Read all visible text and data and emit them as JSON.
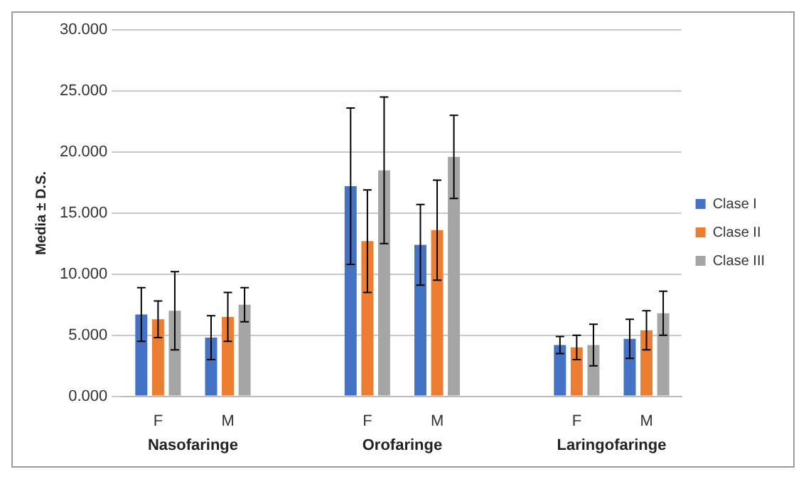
{
  "chart_data": {
    "type": "bar",
    "ylabel": "Media ± D.S.",
    "categories": [
      "F",
      "M",
      null,
      "F",
      "M",
      null,
      "F",
      "M"
    ],
    "series": [
      {
        "name": "Clase I",
        "color": "#4472c4",
        "values": [
          6.7,
          4.8,
          null,
          17.2,
          12.4,
          null,
          4.2,
          4.7
        ],
        "errors": [
          2.2,
          1.8,
          null,
          6.4,
          3.3,
          null,
          0.7,
          1.6
        ]
      },
      {
        "name": "Clase II",
        "color": "#ed7d31",
        "values": [
          6.3,
          6.5,
          null,
          12.7,
          13.6,
          null,
          4.0,
          5.4
        ],
        "errors": [
          1.5,
          2.0,
          null,
          4.2,
          4.1,
          null,
          1.0,
          1.6
        ]
      },
      {
        "name": "Clase III",
        "color": "#a5a5a5",
        "values": [
          7.0,
          7.5,
          null,
          18.5,
          19.6,
          null,
          4.2,
          6.8
        ],
        "errors": [
          3.2,
          1.4,
          null,
          6.0,
          3.4,
          null,
          1.7,
          1.8
        ]
      }
    ],
    "ylim": [
      0,
      30
    ],
    "yticks": [
      {
        "value": 0,
        "label": "0.000"
      },
      {
        "value": 5,
        "label": "5.000"
      },
      {
        "value": 10,
        "label": "10.000"
      },
      {
        "value": 15,
        "label": "15.000"
      },
      {
        "value": 20,
        "label": "20.000"
      },
      {
        "value": 25,
        "label": "25.000"
      },
      {
        "value": 30,
        "label": "30.000"
      }
    ],
    "annotations": [
      "Nasofaringe",
      "Orofaringe",
      "Laringofaringe"
    ],
    "grid": "y",
    "legend": "right"
  }
}
